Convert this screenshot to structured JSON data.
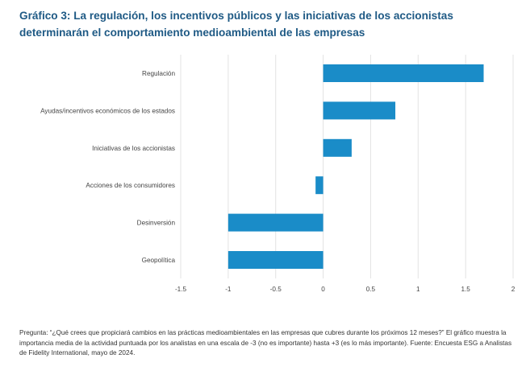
{
  "title": "Gráfico 3: La regulación, los incentivos públicos y las iniciativas de los accionistas determinarán el comportamiento medioambiental de las empresas",
  "footnote": "Pregunta: “¿Qué crees que propiciará cambios en las prácticas medioambientales en las empresas que cubres durante los próximos 12 meses?” El gráfico muestra la importancia media de la actividad puntuada por los analistas en una escala de -3 (no es importante) hasta +3 (es lo más importante). Fuente: Encuesta ESG a Analistas de Fidelity International, mayo de 2024.",
  "colors": {
    "bar": "#1a8cc8",
    "grid": "#e3e3e3",
    "title": "#1f5a85"
  },
  "chart_data": {
    "type": "bar",
    "orientation": "horizontal",
    "categories": [
      "Regulación",
      "Ayudas/incentivos económicos de los estados",
      "Iniciativas de los accionistas",
      "Acciones de los consumidores",
      "Desinversión",
      "Geopolítica"
    ],
    "values": [
      1.69,
      0.76,
      0.3,
      -0.08,
      -1.0,
      -1.0
    ],
    "xlim": [
      -1.5,
      2
    ],
    "xticks": [
      -1.5,
      -1,
      -0.5,
      0,
      0.5,
      1,
      1.5,
      2
    ],
    "xtick_labels": [
      "-1.5",
      "-1",
      "-0.5",
      "0",
      "0.5",
      "1",
      "1.5",
      "2"
    ],
    "grid": true,
    "legend": "none"
  }
}
